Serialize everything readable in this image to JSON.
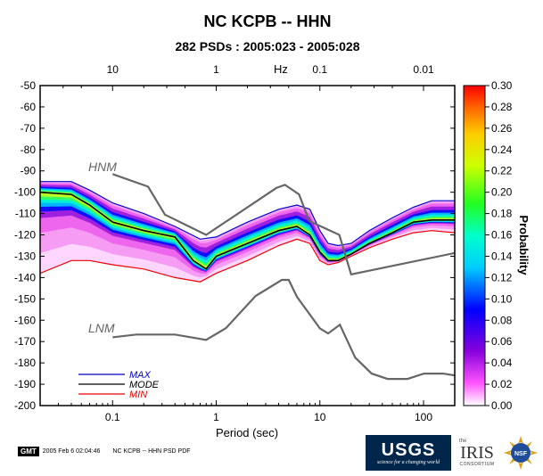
{
  "chart_data": {
    "type": "heatmap",
    "title": "NC KCPB -- HHN",
    "subtitle": "282 PSDs : 2005:023 - 2005:028",
    "xlabel": "Period (sec)",
    "top_axis_label": "Hz",
    "ylabel": "",
    "colorbar_label": "Probability",
    "x_scale": "log",
    "xlim": [
      0.02,
      200
    ],
    "ylim": [
      -200,
      -50
    ],
    "x_ticks": [
      0.1,
      1,
      10,
      100
    ],
    "x_tick_labels": [
      "0.1",
      "1",
      "10",
      "100"
    ],
    "top_ticks_hz": [
      10,
      1,
      0.1,
      0.01
    ],
    "top_tick_labels": [
      "10",
      "1",
      "0.1",
      "0.01"
    ],
    "y_ticks": [
      -50,
      -60,
      -70,
      -80,
      -90,
      -100,
      -110,
      -120,
      -130,
      -140,
      -150,
      -160,
      -170,
      -180,
      -190,
      -200
    ],
    "colorbar_range": [
      0,
      0.3
    ],
    "colorbar_ticks": [
      "0.30",
      "0.28",
      "0.26",
      "0.24",
      "0.22",
      "0.20",
      "0.18",
      "0.16",
      "0.14",
      "0.12",
      "0.10",
      "0.08",
      "0.06",
      "0.04",
      "0.02",
      "0.00"
    ],
    "series": [
      {
        "name": "MAX",
        "color": "#0000cc",
        "x": [
          0.02,
          0.04,
          0.06,
          0.1,
          0.2,
          0.4,
          0.7,
          1,
          2,
          4,
          6,
          8,
          10,
          12,
          15,
          20,
          30,
          50,
          80,
          120,
          200
        ],
        "y": [
          -95,
          -95,
          -99,
          -105,
          -110,
          -116,
          -122,
          -121,
          -114,
          -108,
          -106,
          -108,
          -118,
          -124,
          -125,
          -124,
          -118,
          -112,
          -107,
          -104,
          -104
        ]
      },
      {
        "name": "MODE",
        "color": "#000000",
        "x": [
          0.02,
          0.04,
          0.06,
          0.1,
          0.2,
          0.4,
          0.6,
          0.8,
          1,
          2,
          4,
          6,
          8,
          10,
          12,
          15,
          20,
          30,
          50,
          80,
          120,
          200
        ],
        "y": [
          -100,
          -101,
          -106,
          -114,
          -118,
          -121,
          -132,
          -136,
          -130,
          -124,
          -118,
          -116,
          -120,
          -128,
          -132,
          -132,
          -129,
          -124,
          -119,
          -114,
          -113,
          -113
        ]
      },
      {
        "name": "MIN",
        "color": "#ee0000",
        "x": [
          0.02,
          0.04,
          0.06,
          0.1,
          0.2,
          0.4,
          0.7,
          1,
          2,
          4,
          6,
          8,
          10,
          12,
          15,
          20,
          30,
          50,
          80,
          120,
          200
        ],
        "y": [
          -138,
          -132,
          -132,
          -134,
          -136,
          -140,
          -142,
          -138,
          -132,
          -125,
          -122,
          -124,
          -132,
          -134,
          -133,
          -130,
          -126,
          -122,
          -119,
          -118,
          -119
        ]
      }
    ],
    "noise_models": [
      {
        "name": "HNM",
        "x": [
          0.1,
          0.22,
          0.32,
          0.8,
          3.8,
          4.6,
          6.3,
          7.9,
          15.4,
          20,
          354.8
        ],
        "y": [
          -91.5,
          -97.4,
          -110.5,
          -120,
          -98,
          -96.5,
          -101,
          -113.5,
          -120,
          -138.5,
          -126
        ]
      },
      {
        "name": "LNM",
        "x": [
          0.1,
          0.17,
          0.4,
          0.8,
          1.24,
          2.4,
          4.3,
          5,
          6,
          10,
          12,
          15.6,
          21.9,
          31.6,
          45,
          70,
          101,
          154,
          328
        ],
        "y": [
          -168,
          -166.7,
          -166.7,
          -169.2,
          -163.7,
          -148.6,
          -141.1,
          -141.1,
          -149,
          -163.8,
          -166.2,
          -162.1,
          -177.5,
          -185,
          -187.5,
          -187.5,
          -185,
          -185,
          -187.5
        ]
      }
    ],
    "legend_placement": "bottom-left",
    "legend": [
      "MAX",
      "MODE",
      "MIN"
    ]
  },
  "footer": {
    "gmt_logo": "GMT",
    "timestamp": "2005 Feb  6 02:04:46",
    "caption": "NC KCPB -- HHN PSD PDF"
  },
  "logos": {
    "usgs": "USGS",
    "usgs_tagline": "science for a changing world",
    "iris_the": "the",
    "iris": "IRIS",
    "iris_sub": "CONSORTIUM",
    "nsf": "NSF"
  }
}
